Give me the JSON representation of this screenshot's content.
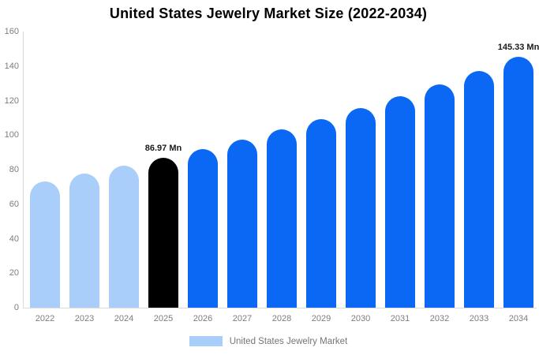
{
  "colors": {
    "light_blue": "#A8CEF9",
    "accent_blue": "#0A68F5",
    "highlight_black": "#000000",
    "axis_line": "#DCDCDC",
    "tick_text": "#7D7D7D",
    "title_text": "#000000",
    "data_label_text": "#1A1A1A"
  },
  "chart_data": {
    "type": "bar",
    "title": "United States Jewelry Market Size (2022-2034)",
    "categories": [
      "2022",
      "2023",
      "2024",
      "2025",
      "2026",
      "2027",
      "2028",
      "2029",
      "2030",
      "2031",
      "2032",
      "2033",
      "2034"
    ],
    "values": [
      73.3,
      77.6,
      82.1,
      86.97,
      92.1,
      97.5,
      103.2,
      109.3,
      115.7,
      122.4,
      129.6,
      137.3,
      145.33
    ],
    "bar_colors": [
      "#A8CEF9",
      "#A8CEF9",
      "#A8CEF9",
      "#000000",
      "#0A68F5",
      "#0A68F5",
      "#0A68F5",
      "#0A68F5",
      "#0A68F5",
      "#0A68F5",
      "#0A68F5",
      "#0A68F5",
      "#0A68F5"
    ],
    "data_labels": [
      "",
      "",
      "",
      "86.97 Mn",
      "",
      "",
      "",
      "",
      "",
      "",
      "",
      "",
      "145.33 Mn"
    ],
    "xlabel": "",
    "ylabel": "",
    "ylim": [
      0,
      160
    ],
    "yticks": [
      0,
      20,
      40,
      60,
      80,
      100,
      120,
      140,
      160
    ],
    "grid": false,
    "legend": {
      "position": "bottom",
      "entries": [
        {
          "label": "United States Jewelry Market",
          "color": "#A8CEF9"
        }
      ]
    }
  }
}
